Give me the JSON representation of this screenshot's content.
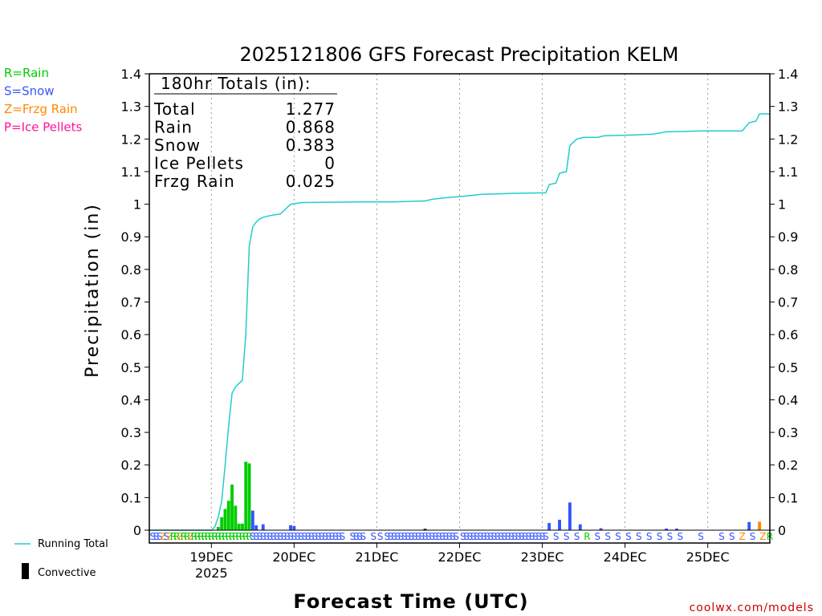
{
  "chart_data": {
    "type": "bar+line",
    "title": "2025121806 GFS Forecast Precipitation KELM",
    "xlabel": "Forecast Time (UTC)",
    "ylabel": "Precipitation (in)",
    "ylim": [
      0,
      1.4
    ],
    "yticks": [
      "0",
      "0.1",
      "0.2",
      "0.3",
      "0.4",
      "0.5",
      "0.6",
      "0.7",
      "0.8",
      "0.9",
      "1",
      "1.1",
      "1.2",
      "1.3",
      "1.4"
    ],
    "x_range_hours": [
      0,
      180
    ],
    "day_ticks": [
      {
        "label": "19DEC",
        "hour": 18
      },
      {
        "label": "20DEC",
        "hour": 42
      },
      {
        "label": "21DEC",
        "hour": 66
      },
      {
        "label": "22DEC",
        "hour": 90
      },
      {
        "label": "23DEC",
        "hour": 114
      },
      {
        "label": "24DEC",
        "hour": 138
      },
      {
        "label": "25DEC",
        "hour": 162
      }
    ],
    "year_label": "2025",
    "totals": {
      "header": "180hr Totals (in):",
      "rows": [
        {
          "name": "Total",
          "value": "1.277"
        },
        {
          "name": "Rain",
          "value": "0.868"
        },
        {
          "name": "Snow",
          "value": "0.383"
        },
        {
          "name": "Ice Pellets",
          "value": "0"
        },
        {
          "name": "Frzg Rain",
          "value": "0.025"
        }
      ]
    },
    "legend": [
      {
        "label": "R=Rain",
        "color": "#00cc00"
      },
      {
        "label": "S=Snow",
        "color": "#3355ff"
      },
      {
        "label": "Z=Frzg Rain",
        "color": "#ff8800"
      },
      {
        "label": "P=Ice Pellets",
        "color": "#ff1493"
      }
    ],
    "running_total_label": "Running Total",
    "convective_label": "Convective",
    "running_total": [
      [
        0,
        0
      ],
      [
        18,
        0
      ],
      [
        19,
        0.01
      ],
      [
        20,
        0.04
      ],
      [
        21,
        0.09
      ],
      [
        22,
        0.2
      ],
      [
        23,
        0.32
      ],
      [
        24,
        0.42
      ],
      [
        25,
        0.44
      ],
      [
        26,
        0.45
      ],
      [
        27,
        0.46
      ],
      [
        28,
        0.6
      ],
      [
        29,
        0.87
      ],
      [
        30,
        0.93
      ],
      [
        31,
        0.945
      ],
      [
        32,
        0.955
      ],
      [
        33,
        0.96
      ],
      [
        35,
        0.965
      ],
      [
        38,
        0.97
      ],
      [
        41,
        1.0
      ],
      [
        44,
        1.005
      ],
      [
        60,
        1.007
      ],
      [
        70,
        1.007
      ],
      [
        80,
        1.01
      ],
      [
        82,
        1.015
      ],
      [
        86,
        1.02
      ],
      [
        92,
        1.025
      ],
      [
        96,
        1.03
      ],
      [
        104,
        1.033
      ],
      [
        115,
        1.035
      ],
      [
        116,
        1.06
      ],
      [
        118,
        1.065
      ],
      [
        119,
        1.095
      ],
      [
        121,
        1.1
      ],
      [
        122,
        1.18
      ],
      [
        124,
        1.2
      ],
      [
        126,
        1.205
      ],
      [
        130,
        1.205
      ],
      [
        132,
        1.21
      ],
      [
        140,
        1.212
      ],
      [
        146,
        1.215
      ],
      [
        150,
        1.222
      ],
      [
        160,
        1.225
      ],
      [
        168,
        1.225
      ],
      [
        172,
        1.225
      ],
      [
        174,
        1.25
      ],
      [
        176,
        1.255
      ],
      [
        177,
        1.277
      ],
      [
        180,
        1.277
      ]
    ],
    "bars": [
      {
        "hour": 20,
        "value": 0.01,
        "type": "R"
      },
      {
        "hour": 21,
        "value": 0.04,
        "type": "R"
      },
      {
        "hour": 22,
        "value": 0.065,
        "type": "R"
      },
      {
        "hour": 23,
        "value": 0.09,
        "type": "R"
      },
      {
        "hour": 24,
        "value": 0.14,
        "type": "R"
      },
      {
        "hour": 25,
        "value": 0.075,
        "type": "R"
      },
      {
        "hour": 26,
        "value": 0.02,
        "type": "R"
      },
      {
        "hour": 27,
        "value": 0.02,
        "type": "R"
      },
      {
        "hour": 28,
        "value": 0.21,
        "type": "R"
      },
      {
        "hour": 29,
        "value": 0.205,
        "type": "R"
      },
      {
        "hour": 30,
        "value": 0.06,
        "type": "S"
      },
      {
        "hour": 31,
        "value": 0.015,
        "type": "S"
      },
      {
        "hour": 33,
        "value": 0.018,
        "type": "S"
      },
      {
        "hour": 41,
        "value": 0.015,
        "type": "S"
      },
      {
        "hour": 42,
        "value": 0.013,
        "type": "S"
      },
      {
        "hour": 80,
        "value": 0.004,
        "type": "S"
      },
      {
        "hour": 116,
        "value": 0.022,
        "type": "S"
      },
      {
        "hour": 119,
        "value": 0.032,
        "type": "S"
      },
      {
        "hour": 122,
        "value": 0.085,
        "type": "S"
      },
      {
        "hour": 125,
        "value": 0.018,
        "type": "S"
      },
      {
        "hour": 131,
        "value": 0.006,
        "type": "S"
      },
      {
        "hour": 150,
        "value": 0.005,
        "type": "S"
      },
      {
        "hour": 153,
        "value": 0.005,
        "type": "S"
      },
      {
        "hour": 174,
        "value": 0.025,
        "type": "S"
      },
      {
        "hour": 177,
        "value": 0.026,
        "type": "Z"
      }
    ],
    "convective": [
      {
        "hour": 80,
        "value": 0.004
      }
    ],
    "ptype_codes": [
      {
        "hour": 1,
        "code": "S"
      },
      {
        "hour": 2,
        "code": "S"
      },
      {
        "hour": 3,
        "code": "S"
      },
      {
        "hour": 4,
        "code": "Z"
      },
      {
        "hour": 5,
        "code": "S"
      },
      {
        "hour": 6,
        "code": "Z"
      },
      {
        "hour": 7,
        "code": "R"
      },
      {
        "hour": 8,
        "code": "R"
      },
      {
        "hour": 9,
        "code": "Z"
      },
      {
        "hour": 10,
        "code": "R"
      },
      {
        "hour": 11,
        "code": "R"
      },
      {
        "hour": 12,
        "code": "Z"
      },
      {
        "hour": 13,
        "code": "R"
      },
      {
        "hour": 14,
        "code": "R"
      },
      {
        "hour": 15,
        "code": "R"
      },
      {
        "hour": 16,
        "code": "R"
      },
      {
        "hour": 17,
        "code": "R"
      },
      {
        "hour": 18,
        "code": "R"
      },
      {
        "hour": 19,
        "code": "R"
      },
      {
        "hour": 20,
        "code": "R"
      },
      {
        "hour": 21,
        "code": "R"
      },
      {
        "hour": 22,
        "code": "R"
      },
      {
        "hour": 23,
        "code": "R"
      },
      {
        "hour": 24,
        "code": "R"
      },
      {
        "hour": 25,
        "code": "R"
      },
      {
        "hour": 26,
        "code": "R"
      },
      {
        "hour": 27,
        "code": "R"
      },
      {
        "hour": 28,
        "code": "R"
      },
      {
        "hour": 29,
        "code": "R"
      },
      {
        "hour": 30,
        "code": "S"
      },
      {
        "hour": 31,
        "code": "S"
      },
      {
        "hour": 32,
        "code": "S"
      },
      {
        "hour": 33,
        "code": "S"
      },
      {
        "hour": 34,
        "code": "S"
      },
      {
        "hour": 35,
        "code": "S"
      },
      {
        "hour": 36,
        "code": "S"
      },
      {
        "hour": 37,
        "code": "S"
      },
      {
        "hour": 38,
        "code": "S"
      },
      {
        "hour": 39,
        "code": "S"
      },
      {
        "hour": 40,
        "code": "S"
      },
      {
        "hour": 41,
        "code": "S"
      },
      {
        "hour": 42,
        "code": "S"
      },
      {
        "hour": 43,
        "code": "S"
      },
      {
        "hour": 44,
        "code": "S"
      },
      {
        "hour": 45,
        "code": "S"
      },
      {
        "hour": 46,
        "code": "S"
      },
      {
        "hour": 47,
        "code": "S"
      },
      {
        "hour": 48,
        "code": "S"
      },
      {
        "hour": 49,
        "code": "S"
      },
      {
        "hour": 50,
        "code": "S"
      },
      {
        "hour": 51,
        "code": "S"
      },
      {
        "hour": 52,
        "code": "S"
      },
      {
        "hour": 53,
        "code": "S"
      },
      {
        "hour": 54,
        "code": "S"
      },
      {
        "hour": 55,
        "code": "S"
      },
      {
        "hour": 56,
        "code": "S"
      },
      {
        "hour": 59,
        "code": "S"
      },
      {
        "hour": 60,
        "code": "S"
      },
      {
        "hour": 61,
        "code": "S"
      },
      {
        "hour": 62,
        "code": "S"
      },
      {
        "hour": 65,
        "code": "S"
      },
      {
        "hour": 67,
        "code": "S"
      },
      {
        "hour": 69,
        "code": "S"
      },
      {
        "hour": 70,
        "code": "S"
      },
      {
        "hour": 71,
        "code": "S"
      },
      {
        "hour": 72,
        "code": "S"
      },
      {
        "hour": 73,
        "code": "S"
      },
      {
        "hour": 74,
        "code": "S"
      },
      {
        "hour": 75,
        "code": "S"
      },
      {
        "hour": 76,
        "code": "S"
      },
      {
        "hour": 77,
        "code": "S"
      },
      {
        "hour": 78,
        "code": "S"
      },
      {
        "hour": 79,
        "code": "S"
      },
      {
        "hour": 80,
        "code": "S"
      },
      {
        "hour": 81,
        "code": "S"
      },
      {
        "hour": 82,
        "code": "S"
      },
      {
        "hour": 83,
        "code": "S"
      },
      {
        "hour": 84,
        "code": "S"
      },
      {
        "hour": 85,
        "code": "S"
      },
      {
        "hour": 86,
        "code": "S"
      },
      {
        "hour": 87,
        "code": "S"
      },
      {
        "hour": 88,
        "code": "S"
      },
      {
        "hour": 89,
        "code": "S"
      },
      {
        "hour": 91,
        "code": "S"
      },
      {
        "hour": 92,
        "code": "S"
      },
      {
        "hour": 93,
        "code": "S"
      },
      {
        "hour": 94,
        "code": "S"
      },
      {
        "hour": 95,
        "code": "S"
      },
      {
        "hour": 96,
        "code": "S"
      },
      {
        "hour": 97,
        "code": "S"
      },
      {
        "hour": 98,
        "code": "S"
      },
      {
        "hour": 99,
        "code": "S"
      },
      {
        "hour": 100,
        "code": "S"
      },
      {
        "hour": 101,
        "code": "S"
      },
      {
        "hour": 102,
        "code": "S"
      },
      {
        "hour": 103,
        "code": "S"
      },
      {
        "hour": 104,
        "code": "S"
      },
      {
        "hour": 105,
        "code": "S"
      },
      {
        "hour": 106,
        "code": "S"
      },
      {
        "hour": 107,
        "code": "S"
      },
      {
        "hour": 108,
        "code": "S"
      },
      {
        "hour": 109,
        "code": "S"
      },
      {
        "hour": 110,
        "code": "S"
      },
      {
        "hour": 111,
        "code": "S"
      },
      {
        "hour": 112,
        "code": "S"
      },
      {
        "hour": 113,
        "code": "S"
      },
      {
        "hour": 114,
        "code": "S"
      },
      {
        "hour": 115,
        "code": "S"
      },
      {
        "hour": 118,
        "code": "S"
      },
      {
        "hour": 121,
        "code": "S"
      },
      {
        "hour": 124,
        "code": "S"
      },
      {
        "hour": 127,
        "code": "R"
      },
      {
        "hour": 130,
        "code": "S"
      },
      {
        "hour": 133,
        "code": "S"
      },
      {
        "hour": 136,
        "code": "S"
      },
      {
        "hour": 139,
        "code": "S"
      },
      {
        "hour": 142,
        "code": "S"
      },
      {
        "hour": 145,
        "code": "S"
      },
      {
        "hour": 148,
        "code": "S"
      },
      {
        "hour": 151,
        "code": "S"
      },
      {
        "hour": 154,
        "code": "S"
      },
      {
        "hour": 160,
        "code": "S"
      },
      {
        "hour": 166,
        "code": "S"
      },
      {
        "hour": 169,
        "code": "S"
      },
      {
        "hour": 172,
        "code": "Z"
      },
      {
        "hour": 175,
        "code": "S"
      },
      {
        "hour": 178,
        "code": "Z"
      },
      {
        "hour": 180,
        "code": "R"
      }
    ],
    "credit": "coolwx.com/models"
  }
}
